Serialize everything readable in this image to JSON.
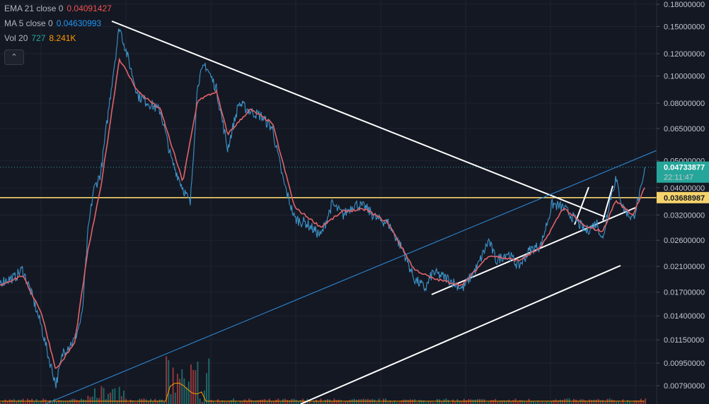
{
  "legend": {
    "ema": {
      "name": "EMA 21 close 0",
      "value": "0.04091427",
      "color": "#ef5350"
    },
    "ma": {
      "name": "MA 5 close 0",
      "value": "0.04630993",
      "color": "#2196f3"
    },
    "vol": {
      "name": "Vol 20",
      "value_a": "727",
      "value_b": "8.241K",
      "color_a": "#26a69a",
      "color_b": "#ff9800"
    }
  },
  "collapse_icon": "chevron-up-icon",
  "colors": {
    "background": "#141823",
    "grid": "#1f2331",
    "price_line": "#3d93c8",
    "ema_line": "#e0636a",
    "trendline": "#ffffff",
    "channel_line": "#2f8fe0",
    "support_line": "#f5d36b",
    "last_price_badge": "#26a69a",
    "support_badge": "#f5d36b"
  },
  "chart_data": {
    "type": "line",
    "scale": "log",
    "y_ticks": [
      "0.18000000",
      "0.15000000",
      "0.12000000",
      "0.10000000",
      "0.08000000",
      "0.06500000",
      "0.05000000",
      "0.04000000",
      "0.03200000",
      "0.02600000",
      "0.02100000",
      "0.01700000",
      "0.01400000",
      "0.01150000",
      "0.00950000",
      "0.00790000"
    ],
    "y_tick_values": [
      0.18,
      0.15,
      0.12,
      0.1,
      0.08,
      0.065,
      0.05,
      0.04,
      0.032,
      0.026,
      0.021,
      0.017,
      0.014,
      0.0115,
      0.0095,
      0.0079
    ],
    "ylim": [
      0.0075,
      0.185
    ],
    "bar_count": 880,
    "price_series": {
      "name": "Price",
      "anchors": [
        [
          0,
          0.0185
        ],
        [
          20,
          0.0192
        ],
        [
          30,
          0.0205
        ],
        [
          40,
          0.0175
        ],
        [
          55,
          0.013
        ],
        [
          65,
          0.01
        ],
        [
          75,
          0.008
        ],
        [
          85,
          0.0105
        ],
        [
          100,
          0.0115
        ],
        [
          110,
          0.014
        ],
        [
          118,
          0.028
        ],
        [
          125,
          0.039
        ],
        [
          135,
          0.045
        ],
        [
          150,
          0.095
        ],
        [
          160,
          0.15
        ],
        [
          170,
          0.12
        ],
        [
          185,
          0.085
        ],
        [
          200,
          0.08
        ],
        [
          215,
          0.075
        ],
        [
          230,
          0.05
        ],
        [
          245,
          0.04
        ],
        [
          255,
          0.035
        ],
        [
          265,
          0.095
        ],
        [
          275,
          0.11
        ],
        [
          290,
          0.09
        ],
        [
          305,
          0.055
        ],
        [
          320,
          0.08
        ],
        [
          335,
          0.075
        ],
        [
          350,
          0.072
        ],
        [
          365,
          0.065
        ],
        [
          380,
          0.042
        ],
        [
          395,
          0.031
        ],
        [
          410,
          0.03
        ],
        [
          430,
          0.027
        ],
        [
          445,
          0.035
        ],
        [
          460,
          0.032
        ],
        [
          475,
          0.035
        ],
        [
          490,
          0.034
        ],
        [
          505,
          0.031
        ],
        [
          520,
          0.03
        ],
        [
          540,
          0.024
        ],
        [
          555,
          0.019
        ],
        [
          570,
          0.0175
        ],
        [
          580,
          0.02
        ],
        [
          600,
          0.019
        ],
        [
          620,
          0.0175
        ],
        [
          640,
          0.021
        ],
        [
          655,
          0.026
        ],
        [
          665,
          0.022
        ],
        [
          680,
          0.0235
        ],
        [
          695,
          0.021
        ],
        [
          710,
          0.024
        ],
        [
          725,
          0.025
        ],
        [
          740,
          0.035
        ],
        [
          755,
          0.034
        ],
        [
          770,
          0.031
        ],
        [
          785,
          0.028
        ],
        [
          800,
          0.03
        ],
        [
          808,
          0.026
        ],
        [
          815,
          0.034
        ],
        [
          825,
          0.043
        ],
        [
          835,
          0.034
        ],
        [
          848,
          0.031
        ],
        [
          860,
          0.04
        ],
        [
          865,
          0.0473
        ]
      ]
    },
    "ema_series": {
      "name": "EMA 21",
      "anchors": [
        [
          0,
          0.018
        ],
        [
          30,
          0.0195
        ],
        [
          55,
          0.0145
        ],
        [
          75,
          0.009
        ],
        [
          100,
          0.0112
        ],
        [
          118,
          0.024
        ],
        [
          135,
          0.04
        ],
        [
          160,
          0.115
        ],
        [
          185,
          0.088
        ],
        [
          215,
          0.076
        ],
        [
          245,
          0.042
        ],
        [
          265,
          0.082
        ],
        [
          290,
          0.088
        ],
        [
          305,
          0.062
        ],
        [
          335,
          0.076
        ],
        [
          365,
          0.068
        ],
        [
          395,
          0.034
        ],
        [
          430,
          0.029
        ],
        [
          460,
          0.033
        ],
        [
          490,
          0.0335
        ],
        [
          520,
          0.03
        ],
        [
          555,
          0.0205
        ],
        [
          580,
          0.019
        ],
        [
          620,
          0.018
        ],
        [
          655,
          0.023
        ],
        [
          695,
          0.022
        ],
        [
          725,
          0.0245
        ],
        [
          755,
          0.034
        ],
        [
          785,
          0.029
        ],
        [
          808,
          0.028
        ],
        [
          825,
          0.036
        ],
        [
          848,
          0.032
        ],
        [
          865,
          0.0409
        ]
      ]
    },
    "last_price": "0.04733877",
    "countdown": "22:11:47",
    "support_level": "0.03688987",
    "support_value": 0.03688987,
    "last_price_value": 0.04733877
  }
}
